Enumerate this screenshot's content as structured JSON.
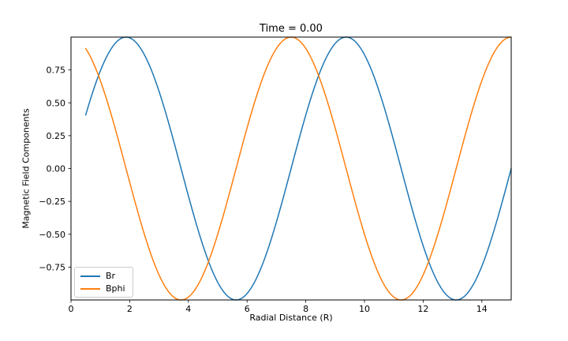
{
  "chart_data": {
    "type": "line",
    "title": "Time = 0.00",
    "xlabel": "Radial Distance (R)",
    "ylabel": "Magnetic Field Components",
    "xlim": [
      0,
      15
    ],
    "ylim": [
      -1,
      1
    ],
    "x_ticks": [
      0,
      2,
      4,
      6,
      8,
      10,
      12,
      14
    ],
    "y_ticks": [
      0.75,
      0.5,
      0.25,
      0.0,
      -0.25,
      -0.5,
      -0.75
    ],
    "grid": false,
    "frame_color": "#000000",
    "legend": {
      "position": "lower-left",
      "entries": [
        "Br",
        "Bphi"
      ]
    },
    "series": [
      {
        "name": "Br",
        "color": "#1f77b4",
        "waveform": "sin",
        "wavelength": 7.5,
        "amplitude": 1,
        "phase": 0,
        "r_start": 0.5,
        "r_end": 15,
        "sample_r": [
          0.5,
          1,
          2,
          3,
          4,
          5,
          6,
          7,
          8,
          9,
          10,
          11,
          12,
          13,
          14,
          15
        ],
        "sample_values": [
          0.407,
          0.743,
          0.995,
          0.588,
          -0.208,
          -0.866,
          -0.951,
          -0.407,
          0.407,
          0.951,
          0.866,
          0.208,
          -0.588,
          -0.995,
          -0.743,
          0.0
        ]
      },
      {
        "name": "Bphi",
        "color": "#ff7f0e",
        "waveform": "cos",
        "wavelength": 7.5,
        "amplitude": 1,
        "phase": 0,
        "r_start": 0.5,
        "r_end": 15,
        "sample_r": [
          0.5,
          1,
          2,
          3,
          4,
          5,
          6,
          7,
          8,
          9,
          10,
          11,
          12,
          13,
          14,
          15
        ],
        "sample_values": [
          0.914,
          0.669,
          -0.105,
          -0.809,
          -0.978,
          -0.5,
          0.309,
          0.914,
          0.914,
          0.309,
          -0.5,
          -0.978,
          -0.809,
          -0.105,
          0.669,
          1.0
        ]
      }
    ]
  }
}
